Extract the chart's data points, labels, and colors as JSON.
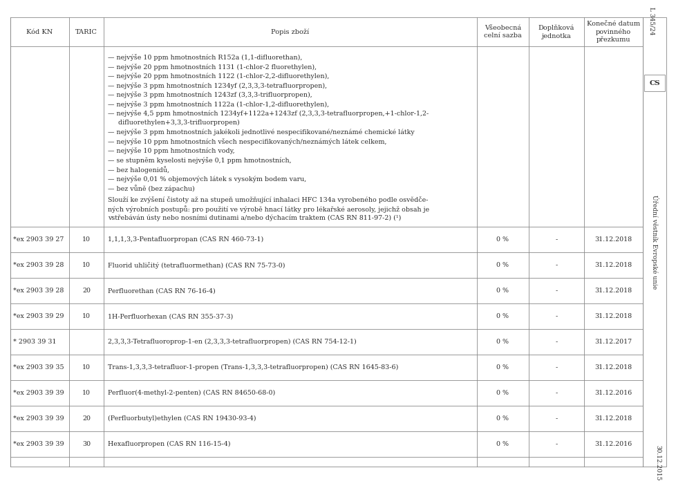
{
  "bg_color": "#ffffff",
  "text_color": "#2d2d2d",
  "header_row": [
    "Kód KN",
    "TARIC",
    "Popis zboží",
    "Všeobecná\ncelní sazba",
    "Doplňková\njednotka",
    "Konečné datum\npovinného\npřezkumu"
  ],
  "bullet_lines": [
    "— nejvýše 10 ppm hmotnostních R152a (1,1-difluorethan),",
    "— nejvýše 20 ppm hmotnostních 1131 (1-chlor-2 fluorethylen),",
    "— nejvýše 20 ppm hmotnostních 1122 (1-chlor-2,2-difluorethylen),",
    "— nejvýše 3 ppm hmotnostních 1234yf (2,3,3,3-tetrafluorpropen),",
    "— nejvýše 3 ppm hmotnostních 1243zf (3,3,3-trifluorpropen),",
    "— nejvýše 3 ppm hmotnostních 1122a (1-chlor-1,2-difluorethylen),",
    "— nejvýše 4,5 ppm hmotnostních 1234yf+1122a+1243zf (2,3,3,3-tetrafluorpropen,+1-chlor-1,2-",
    "     difluorethylen+3,3,3-trifluorpropen)",
    "— nejvýše 3 ppm hmotnostních jakékoli jednotlivé nespecifikované/neznámé chemické látky",
    "— nejvýše 10 ppm hmotnostních všech nespecifikovaných/neznámých látek celkem,",
    "— nejvýše 10 ppm hmotnostních vody,",
    "— se stupněm kyselosti nejvýše 0,1 ppm hmotnostních,",
    "— bez halogenidů,",
    "— nejvýše 0,01 % objemových látek s vysokým bodem varu,",
    "— bez vůně (bez zápachu)"
  ],
  "paragraph_lines": [
    "Slouží ke zvýšení čistoty až na stupeň umožňující inhalaci HFC 134a vyrobeného podle osvědče-",
    "ných výrobních postupů: pro použití ve výrobě hnací látky pro lékařské aerosoly, jejichž obsah je",
    "vstřebáván ústy nebo nosními dutinami a/nebo dýchacím traktem (CAS RN 811-97-2) (¹)"
  ],
  "data_rows": [
    [
      "*ex 2903 39 27",
      "10",
      "1,1,1,3,3-Pentafluorpropan (CAS RN 460-73-1)",
      "0 %",
      "-",
      "31.12.2018"
    ],
    [
      "*ex 2903 39 28",
      "10",
      "Fluorid uhličitý (tetrafluormethan) (CAS RN 75-73-0)",
      "0 %",
      "-",
      "31.12.2018"
    ],
    [
      "*ex 2903 39 28",
      "20",
      "Perfluorethan (CAS RN 76-16-4)",
      "0 %",
      "-",
      "31.12.2018"
    ],
    [
      "*ex 2903 39 29",
      "10",
      "1H-Perfluorhexan (CAS RN 355-37-3)",
      "0 %",
      "-",
      "31.12.2018"
    ],
    [
      "* 2903 39 31",
      "",
      "2,3,3,3-Tetrafluoroprop-1-en (2,3,3,3-tetrafluorpropen) (CAS RN 754-12-1)",
      "0 %",
      "-",
      "31.12.2017"
    ],
    [
      "*ex 2903 39 35",
      "10",
      "Trans-1,3,3,3-tetrafluor-1-propen (Trans-1,3,3,3-tetrafluorpropen) (CAS RN 1645-83-6)",
      "0 %",
      "-",
      "31.12.2018"
    ],
    [
      "*ex 2903 39 39",
      "10",
      "Perfluor(4-methyl-2-penten) (CAS RN 84650-68-0)",
      "0 %",
      "-",
      "31.12.2016"
    ],
    [
      "*ex 2903 39 39",
      "20",
      "(Perfluorbutyl)ethylen (CAS RN 19430-93-4)",
      "0 %",
      "-",
      "31.12.2018"
    ],
    [
      "*ex 2903 39 39",
      "30",
      "Hexafluorpropen (CAS RN 116-15-4)",
      "0 %",
      "-",
      "31.12.2016"
    ]
  ],
  "font_size_header": 7.0,
  "font_size_body": 6.8,
  "font_size_sidebar": 6.5,
  "line_color": "#888888",
  "line_width": 0.6,
  "sidebar_l345": "L 345/24",
  "sidebar_cs": "CS",
  "sidebar_oj": "Úřední věstník Evropské unie",
  "sidebar_date": "30.12.2015"
}
